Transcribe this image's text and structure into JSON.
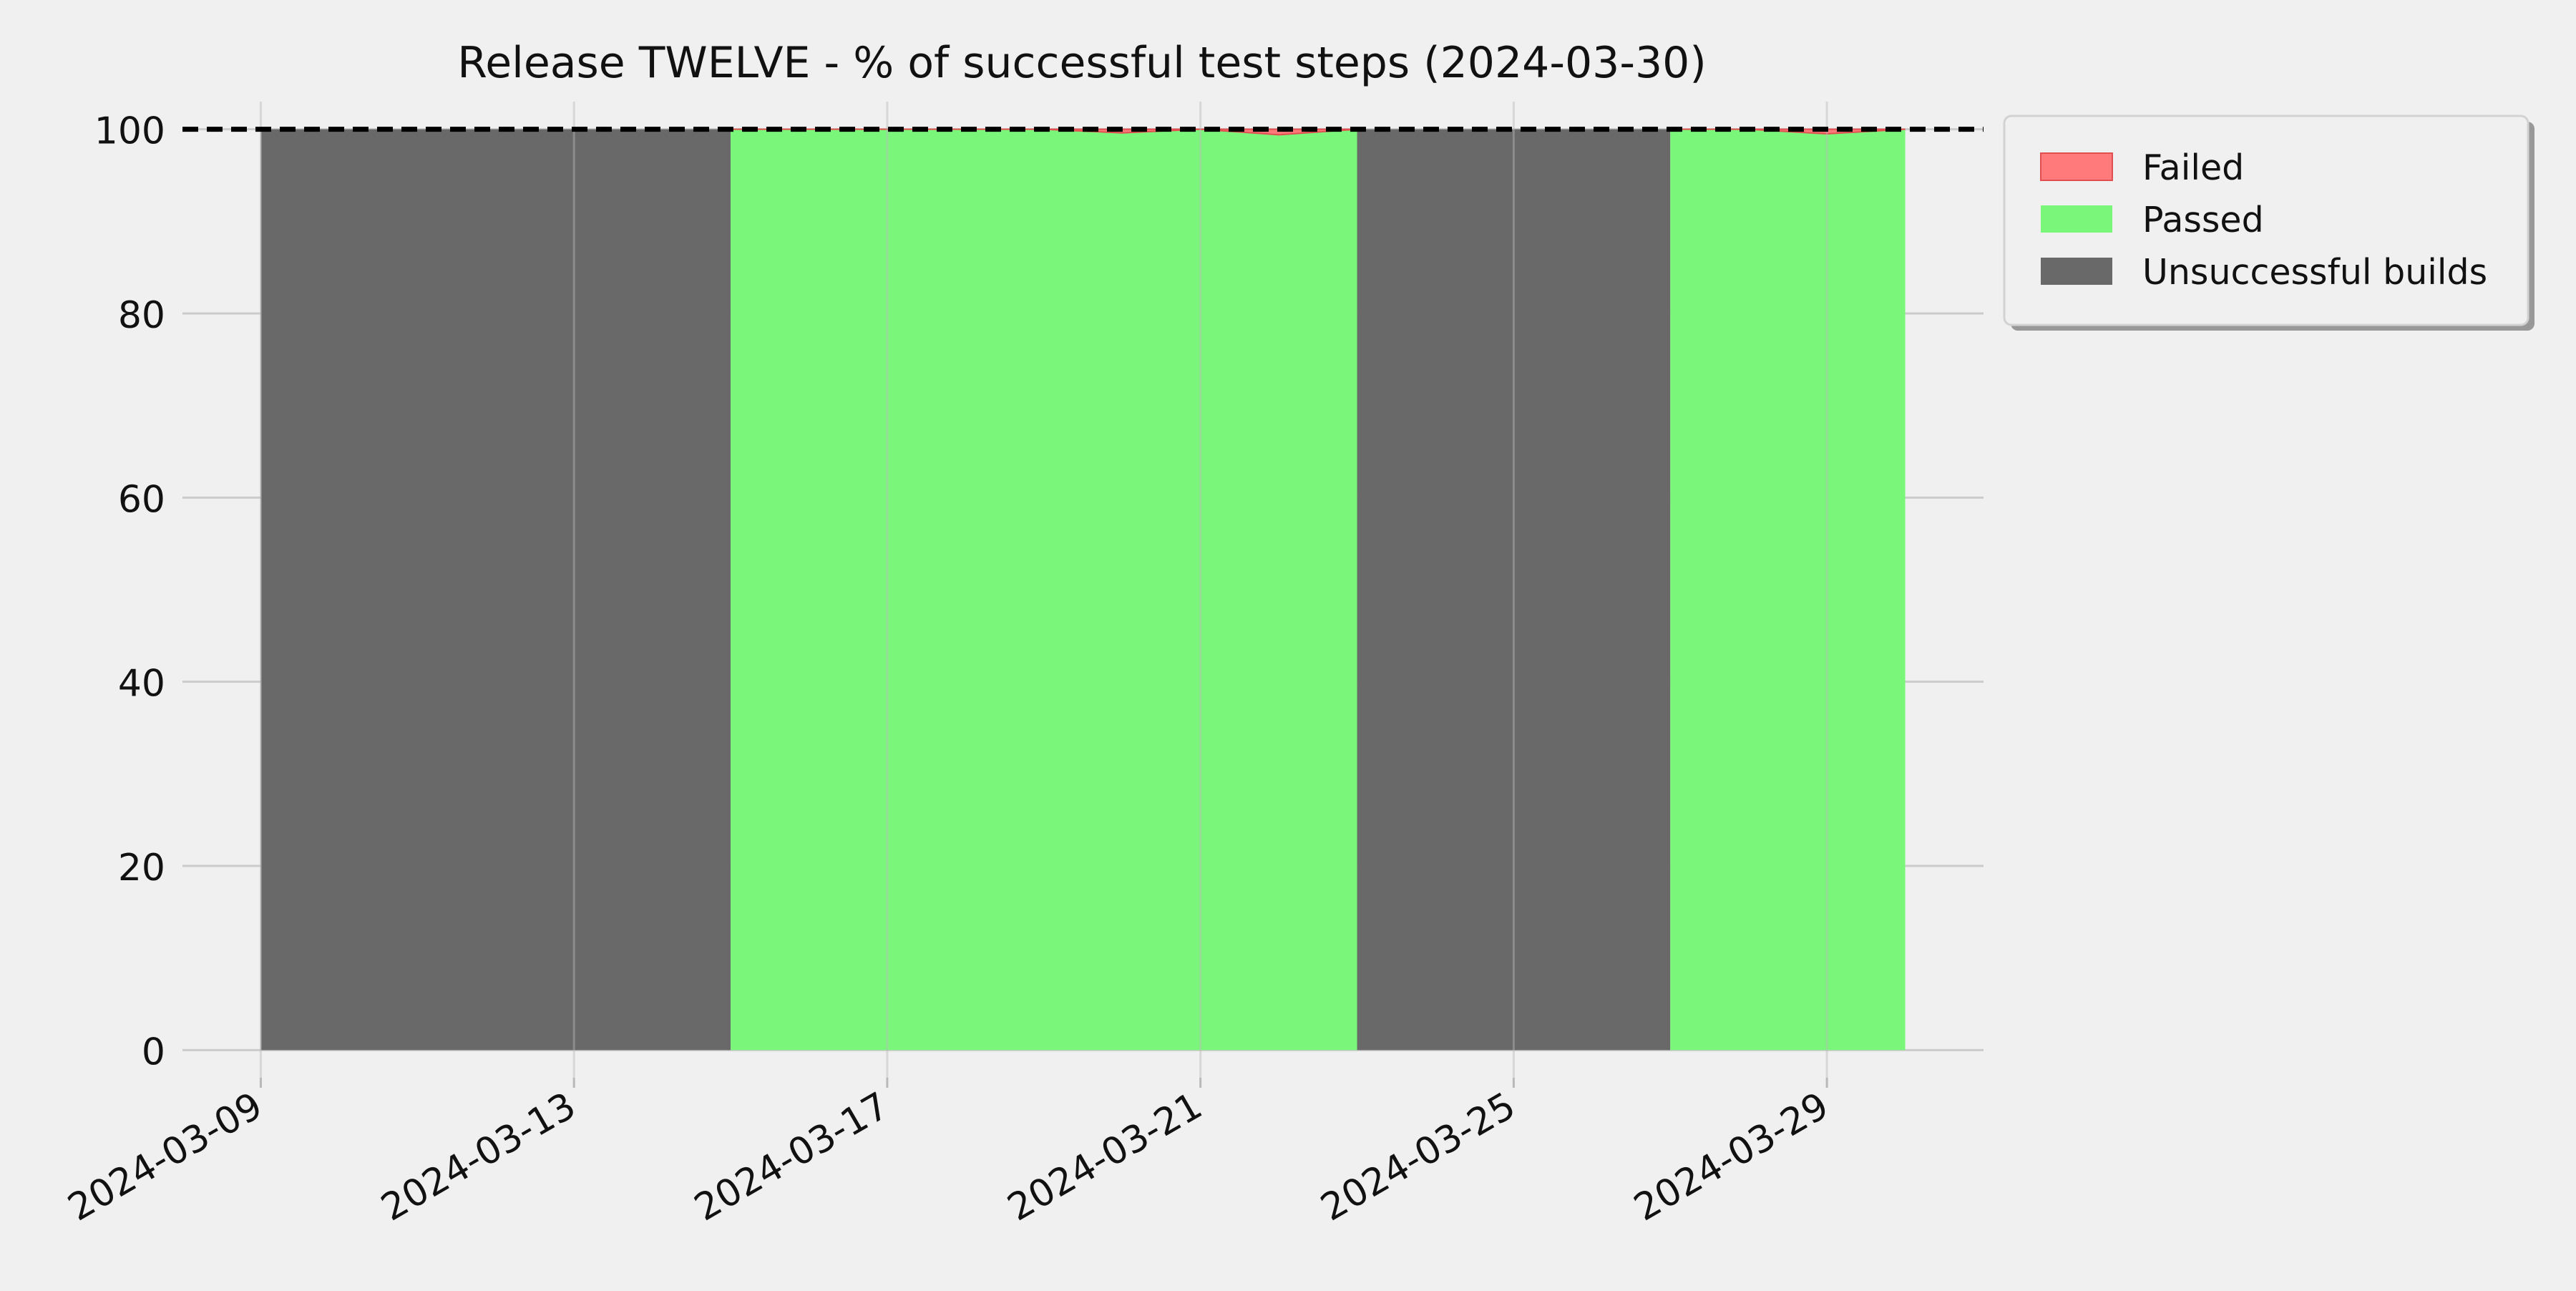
{
  "chart_data": {
    "type": "area",
    "title": "Release TWELVE - % of successful test steps (2024-03-30)",
    "xlabel": "",
    "ylabel": "",
    "x_ticks": [
      "2024-03-09",
      "2024-03-13",
      "2024-03-17",
      "2024-03-21",
      "2024-03-25",
      "2024-03-29"
    ],
    "y_ticks": [
      0,
      20,
      40,
      60,
      80,
      100
    ],
    "xlim": [
      "2024-03-08",
      "2024-03-31"
    ],
    "ylim": [
      -3,
      103
    ],
    "reference_line": {
      "y": 100,
      "style": "dashed",
      "color": "#000000"
    },
    "grid": true,
    "legend_position": "outside-top-right",
    "series": [
      {
        "name": "Failed",
        "color": "#ff7b7b",
        "points": [
          {
            "x": "2024-03-15",
            "y": 0
          },
          {
            "x": "2024-03-16",
            "y": 0
          },
          {
            "x": "2024-03-17",
            "y": 0
          },
          {
            "x": "2024-03-18",
            "y": 0
          },
          {
            "x": "2024-03-19",
            "y": 0
          },
          {
            "x": "2024-03-20",
            "y": 0.4
          },
          {
            "x": "2024-03-21",
            "y": 0
          },
          {
            "x": "2024-03-22",
            "y": 0.6
          },
          {
            "x": "2024-03-23",
            "y": 0
          },
          {
            "x": "2024-03-27",
            "y": 0
          },
          {
            "x": "2024-03-28",
            "y": 0
          },
          {
            "x": "2024-03-29",
            "y": 0.5
          },
          {
            "x": "2024-03-30",
            "y": 0
          }
        ]
      },
      {
        "name": "Passed",
        "color": "#7af77a",
        "points": [
          {
            "x": "2024-03-15",
            "y": 100
          },
          {
            "x": "2024-03-16",
            "y": 100
          },
          {
            "x": "2024-03-17",
            "y": 100
          },
          {
            "x": "2024-03-18",
            "y": 100
          },
          {
            "x": "2024-03-19",
            "y": 100
          },
          {
            "x": "2024-03-20",
            "y": 99.6
          },
          {
            "x": "2024-03-21",
            "y": 100
          },
          {
            "x": "2024-03-22",
            "y": 99.4
          },
          {
            "x": "2024-03-23",
            "y": 100
          },
          {
            "x": "2024-03-27",
            "y": 100
          },
          {
            "x": "2024-03-28",
            "y": 100
          },
          {
            "x": "2024-03-29",
            "y": 99.5
          },
          {
            "x": "2024-03-30",
            "y": 100
          }
        ]
      },
      {
        "name": "Unsuccessful builds",
        "color": "#696969",
        "ranges": [
          {
            "start": "2024-03-09",
            "end": "2024-03-15",
            "y": 100
          },
          {
            "start": "2024-03-23",
            "end": "2024-03-27",
            "y": 100
          }
        ]
      }
    ]
  }
}
